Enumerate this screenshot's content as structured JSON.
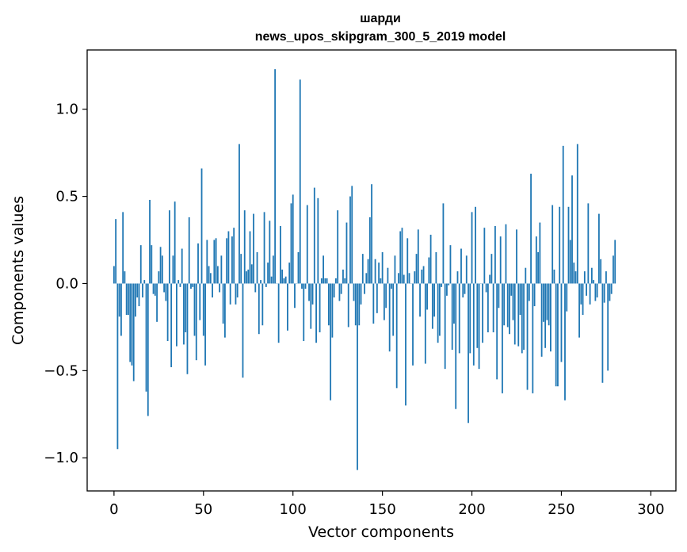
{
  "chart_data": {
    "type": "bar",
    "title": [
      "шарди",
      "news_upos_skipgram_300_5_2019 model"
    ],
    "xlabel": "Vector components",
    "ylabel": "Components values",
    "xlim": [
      -15,
      314
    ],
    "ylim": [
      -1.19,
      1.34
    ],
    "xticks": [
      0,
      50,
      100,
      150,
      200,
      250,
      300
    ],
    "xtick_labels": [
      "0",
      "50",
      "100",
      "150",
      "200",
      "250",
      "300"
    ],
    "yticks": [
      -1.0,
      -0.5,
      0.0,
      0.5,
      1.0
    ],
    "ytick_labels": [
      "−1.0",
      "−0.5",
      "0.0",
      "0.5",
      "1.0"
    ],
    "grid": false,
    "bar_color": "#1f77b4",
    "values": [
      0.1,
      0.37,
      -0.95,
      -0.19,
      -0.3,
      0.41,
      0.07,
      -0.18,
      -0.18,
      -0.45,
      -0.47,
      -0.56,
      -0.19,
      -0.08,
      -0.13,
      0.22,
      -0.08,
      0.02,
      -0.62,
      -0.76,
      0.48,
      0.22,
      -0.06,
      -0.07,
      -0.22,
      0.07,
      0.21,
      0.16,
      -0.05,
      -0.1,
      -0.33,
      0.42,
      -0.48,
      0.16,
      0.47,
      -0.36,
      0.02,
      -0.02,
      0.2,
      -0.35,
      -0.28,
      -0.52,
      0.38,
      -0.03,
      -0.02,
      -0.3,
      -0.44,
      0.23,
      -0.21,
      0.66,
      -0.3,
      -0.47,
      0.25,
      0.1,
      0.06,
      -0.08,
      0.25,
      0.26,
      0.1,
      -0.05,
      0.16,
      -0.23,
      -0.31,
      0.26,
      0.3,
      -0.12,
      0.27,
      0.32,
      -0.12,
      -0.08,
      0.8,
      0.17,
      -0.54,
      0.42,
      0.07,
      0.08,
      0.3,
      0.11,
      0.4,
      -0.05,
      0.18,
      -0.29,
      0.02,
      -0.24,
      0.41,
      -0.02,
      0.12,
      0.36,
      0.04,
      0.16,
      1.23,
      0.0,
      -0.34,
      0.33,
      0.08,
      0.03,
      0.04,
      -0.27,
      0.12,
      0.46,
      0.51,
      -0.14,
      0.0,
      0.18,
      1.17,
      -0.03,
      -0.33,
      -0.03,
      0.45,
      -0.1,
      -0.26,
      -0.12,
      0.55,
      -0.34,
      0.49,
      -0.28,
      0.03,
      0.16,
      0.03,
      0.03,
      -0.24,
      -0.67,
      -0.31,
      -0.08,
      0.03,
      0.42,
      -0.1,
      -0.06,
      0.08,
      0.03,
      0.35,
      -0.25,
      0.5,
      0.56,
      -0.1,
      -0.24,
      -1.07,
      -0.24,
      -0.12,
      0.17,
      -0.06,
      0.06,
      0.14,
      0.38,
      0.57,
      -0.23,
      0.14,
      -0.17,
      0.12,
      0.03,
      0.18,
      -0.21,
      -0.14,
      0.09,
      -0.39,
      -0.03,
      -0.3,
      0.16,
      -0.6,
      0.06,
      0.3,
      0.32,
      0.05,
      -0.7,
      0.26,
      0.06,
      0.0,
      -0.47,
      0.07,
      0.17,
      0.31,
      -0.19,
      0.08,
      0.1,
      -0.46,
      -0.15,
      0.15,
      0.28,
      -0.26,
      -0.19,
      0.18,
      -0.34,
      -0.3,
      -0.02,
      0.46,
      -0.49,
      -0.07,
      -0.01,
      0.22,
      -0.38,
      -0.23,
      -0.72,
      0.07,
      -0.4,
      0.2,
      -0.08,
      -0.06,
      0.16,
      -0.8,
      -0.4,
      0.41,
      -0.47,
      0.44,
      -0.37,
      -0.49,
      0.0,
      -0.34,
      0.32,
      -0.05,
      -0.28,
      0.05,
      0.17,
      -0.28,
      0.33,
      -0.55,
      -0.14,
      0.27,
      -0.63,
      -0.24,
      0.34,
      -0.25,
      -0.29,
      -0.07,
      -0.21,
      -0.35,
      0.31,
      -0.36,
      -0.18,
      -0.4,
      -0.38,
      0.09,
      -0.61,
      -0.1,
      0.63,
      -0.63,
      -0.13,
      0.27,
      0.18,
      0.35,
      -0.42,
      -0.22,
      -0.37,
      -0.21,
      -0.24,
      -0.39,
      0.45,
      0.08,
      -0.59,
      -0.59,
      0.44,
      -0.45,
      0.79,
      -0.67,
      -0.16,
      0.44,
      0.25,
      0.62,
      0.12,
      0.07,
      0.8,
      -0.31,
      -0.12,
      -0.18,
      0.07,
      -0.07,
      0.46,
      -0.12,
      0.09,
      0.02,
      -0.1,
      -0.08,
      0.4,
      0.14,
      -0.57,
      -0.11,
      0.07,
      -0.5,
      -0.1,
      -0.06,
      0.16,
      0.25
    ]
  }
}
